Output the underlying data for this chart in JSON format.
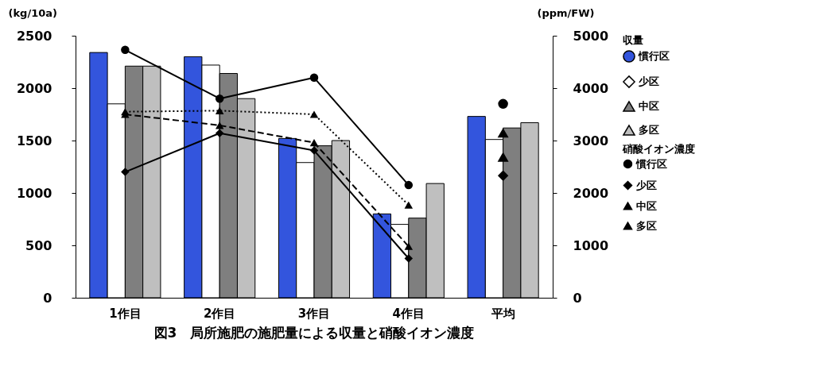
{
  "chart_data": {
    "type": "bar",
    "title": "図3　局所施肥の施肥量による収量と硝酸イオン濃度",
    "ylabel": "(kg/10a)",
    "y2label": "(ppm/FW)",
    "categories": [
      "1作目",
      "2作目",
      "3作目",
      "4作目",
      "平均"
    ],
    "series": [
      {
        "name": "慣行区",
        "color": "#3355dd",
        "values": [
          2340,
          2300,
          1520,
          800,
          1730
        ]
      },
      {
        "name": "少区",
        "color": "#ffffff",
        "values": [
          1850,
          2220,
          1290,
          700,
          1510
        ]
      },
      {
        "name": "中区",
        "color": "#7f7f7f",
        "values": [
          2210,
          2140,
          1450,
          760,
          1620
        ]
      },
      {
        "name": "多区",
        "color": "#bfbfbf",
        "values": [
          2210,
          1900,
          1500,
          1090,
          1670
        ]
      },
      {
        "name": "慣行区",
        "type": "line",
        "axis": "y2",
        "color": "#000000",
        "marker": "circle",
        "line_style": "solid",
        "values": [
          4730,
          3800,
          4200,
          2150,
          null
        ]
      },
      {
        "name": "少区",
        "type": "line",
        "axis": "y2",
        "color": "#000000",
        "marker": "diamond",
        "line_style": "solid",
        "values": [
          2400,
          3140,
          2810,
          750,
          null
        ]
      },
      {
        "name": "中区",
        "type": "line",
        "axis": "y2",
        "color": "#000000",
        "marker": "triangle",
        "line_style": "dashed",
        "values": [
          3500,
          3290,
          2960,
          980,
          null
        ]
      },
      {
        "name": "多区",
        "type": "line",
        "axis": "y2",
        "color": "#000000",
        "marker": "triangle",
        "line_style": "dotted",
        "values": [
          3550,
          3570,
          3500,
          1770,
          null
        ]
      },
      {
        "type": "scatter",
        "axis": "y2",
        "color": "#000000",
        "marker": "circle",
        "x": [
          "平均"
        ],
        "values": [
          3700
        ]
      },
      {
        "type": "scatter",
        "axis": "y2",
        "color": "#000000",
        "marker": "diamond",
        "x": [
          "平均"
        ],
        "values": [
          2330
        ]
      },
      {
        "type": "scatter",
        "axis": "y2",
        "color": "#000000",
        "marker": "triangle",
        "x": [
          "平均"
        ],
        "values": [
          2680
        ]
      },
      {
        "type": "scatter",
        "axis": "y2",
        "color": "#000000",
        "marker": "triangle",
        "x": [
          "平均"
        ],
        "values": [
          3140
        ]
      }
    ],
    "ylim": [
      0,
      2500
    ],
    "yticks": [
      0,
      500,
      1000,
      1500,
      2000,
      2500
    ],
    "y2lim": [
      0,
      5000
    ],
    "y2ticks": [
      0,
      1000,
      2000,
      3000,
      4000,
      5000
    ],
    "annotations": [
      "収量",
      "硝酸イオン濃度"
    ],
    "legend": "right",
    "grid": false
  }
}
